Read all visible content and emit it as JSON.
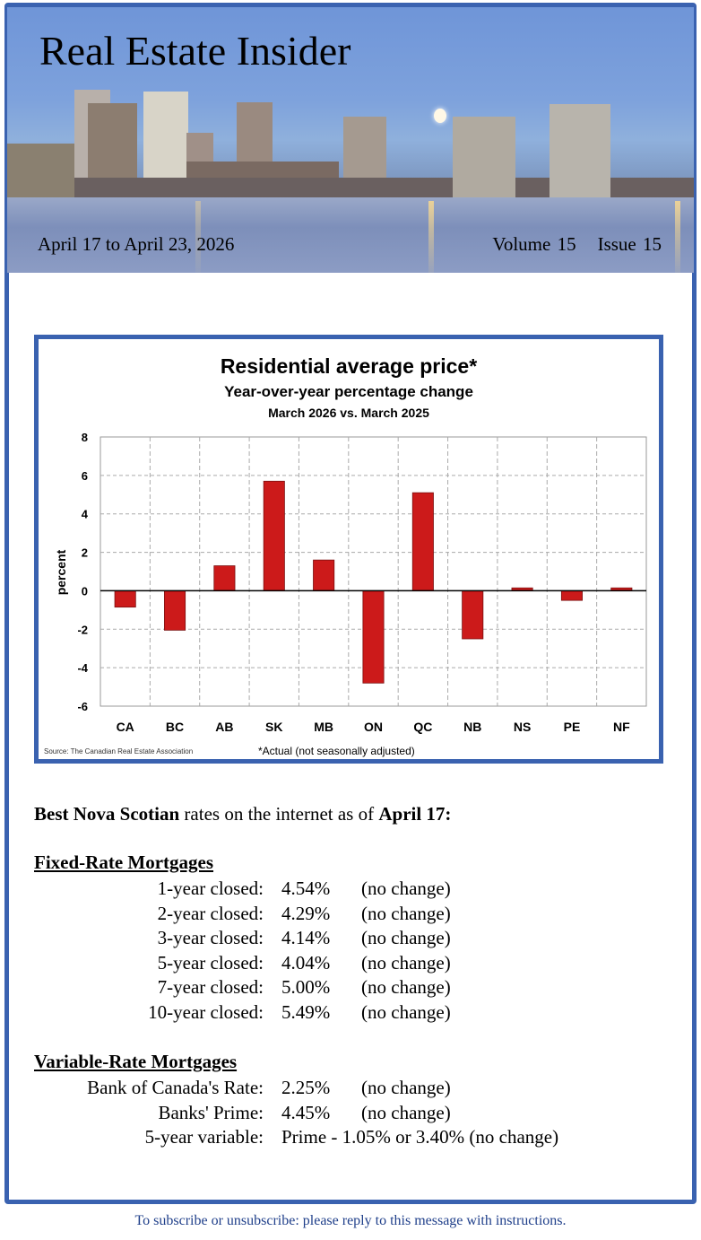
{
  "header": {
    "title": "Real Estate Insider",
    "date_range": "April 17 to April 23, 2026",
    "volume": "Volume 15",
    "issue": "Issue 15"
  },
  "chart_data": {
    "type": "bar",
    "title": "Residential average price*",
    "subtitle": "Year-over-year percentage change",
    "subtitle2": "March 2026 vs. March 2025",
    "ylabel": "percent",
    "xlabel": "",
    "categories": [
      "CA",
      "BC",
      "AB",
      "SK",
      "MB",
      "ON",
      "QC",
      "NB",
      "NS",
      "PE",
      "NF"
    ],
    "values": [
      -0.85,
      -2.05,
      1.3,
      5.7,
      1.6,
      -4.8,
      5.1,
      -2.5,
      0.15,
      -0.5,
      0.15
    ],
    "ylim": [
      -6,
      8
    ],
    "yticks": [
      "8",
      "6",
      "4",
      "2",
      "0",
      "-2",
      "-4",
      "-6"
    ],
    "grid": true,
    "source": "Source: The Canadian Real Estate Association",
    "note": "*Actual (not seasonally adjusted)",
    "bar_color": "#cc1a1a"
  },
  "intro": {
    "bold1": "Best Nova Scotian",
    "mid": " rates on the internet as of ",
    "bold2": "April 17:"
  },
  "fixed": {
    "heading": "Fixed-Rate Mortgages",
    "rows": [
      {
        "label": "1-year closed:",
        "rate": "4.54%",
        "change": "(no change)"
      },
      {
        "label": "2-year closed:",
        "rate": "4.29%",
        "change": "(no change)"
      },
      {
        "label": "3-year closed:",
        "rate": "4.14%",
        "change": "(no change)"
      },
      {
        "label": "5-year closed:",
        "rate": "4.04%",
        "change": "(no change)"
      },
      {
        "label": "7-year closed:",
        "rate": "5.00%",
        "change": "(no change)"
      },
      {
        "label": "10-year closed:",
        "rate": "5.49%",
        "change": "(no change)"
      }
    ]
  },
  "variable": {
    "heading": "Variable-Rate Mortgages",
    "rows": [
      {
        "label": "Bank of Canada's Rate:",
        "rate": "2.25%",
        "change": "(no change)"
      },
      {
        "label": "Banks' Prime:",
        "rate": "4.45%",
        "change": "(no change)"
      },
      {
        "label": "5-year variable:",
        "rate": "Prime - 1.05% or 3.40% (no change)",
        "change": ""
      }
    ]
  },
  "footer": "To subscribe or unsubscribe: please reply to this message with instructions."
}
